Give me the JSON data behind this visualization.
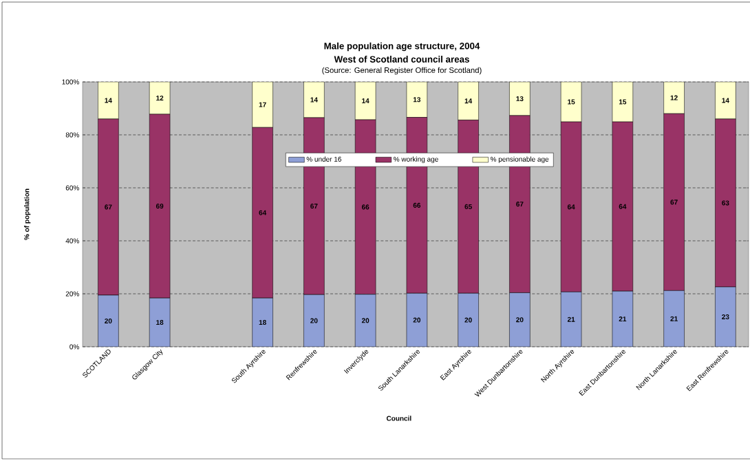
{
  "chart_data": {
    "type": "bar",
    "stacked": true,
    "title": "Male population age structure, 2004",
    "subtitle": "West of Scotland council areas",
    "annotations": [
      "(Source: General Register Office for Scotland)"
    ],
    "xlabel": "Council",
    "ylabel": "% of population",
    "categories": [
      "SCOTLAND",
      "Glasgow City",
      null,
      "South Ayrshire",
      "Renfrewshire",
      "Inverclyde",
      "South Lanarkshire",
      "East Ayrshire",
      "West Dunbartonshire",
      "North Ayrshire",
      "East Dunbartonshire",
      "North Lanarkshire",
      "East Renfrewshire"
    ],
    "series": [
      {
        "name": "% under 16",
        "color": "#8e9fd6",
        "values": [
          19.5,
          18.4,
          null,
          18.4,
          19.7,
          19.8,
          20.2,
          20.2,
          20.4,
          20.7,
          21.0,
          21.2,
          22.6
        ],
        "value_labels": [
          "20",
          "18",
          null,
          "18",
          "20",
          "20",
          "20",
          "20",
          "20",
          "21",
          "21",
          "21",
          "23"
        ]
      },
      {
        "name": "% working age",
        "color": "#993366",
        "values": [
          66.5,
          69.4,
          null,
          64.4,
          66.8,
          65.9,
          66.4,
          65.4,
          66.9,
          64.2,
          63.9,
          66.8,
          63.4
        ],
        "value_labels": [
          "67",
          "69",
          null,
          "64",
          "67",
          "66",
          "66",
          "65",
          "67",
          "64",
          "64",
          "67",
          "63"
        ]
      },
      {
        "name": "% pensionable age",
        "color": "#ffffcc",
        "values": [
          14.0,
          12.2,
          null,
          17.2,
          13.5,
          14.3,
          13.4,
          14.4,
          12.7,
          15.1,
          15.1,
          12.0,
          14.0
        ],
        "value_labels": [
          "14",
          "12",
          null,
          "17",
          "14",
          "14",
          "13",
          "14",
          "13",
          "15",
          "15",
          "12",
          "14"
        ]
      }
    ],
    "ylim": [
      0,
      100
    ],
    "yticks": [
      {
        "value": 0,
        "label": "0%"
      },
      {
        "value": 20,
        "label": "20%"
      },
      {
        "value": 40,
        "label": "40%"
      },
      {
        "value": 60,
        "label": "60%"
      },
      {
        "value": 80,
        "label": "80%"
      },
      {
        "value": 100,
        "label": "100%"
      }
    ],
    "grid": "y",
    "legend": "top"
  }
}
